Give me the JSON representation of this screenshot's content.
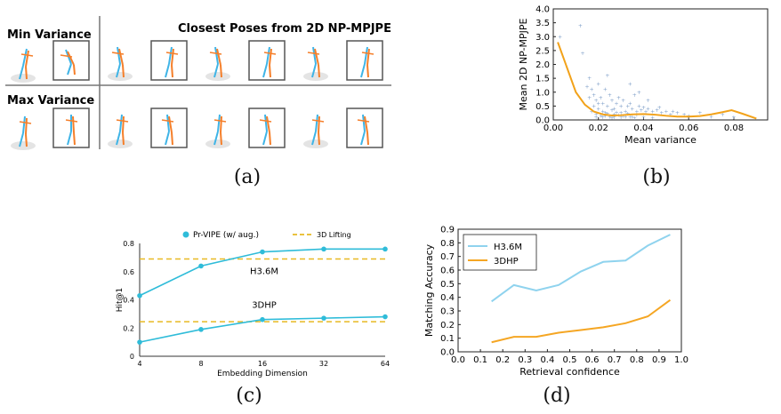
{
  "captions": {
    "a": "(a)",
    "b": "(b)",
    "c": "(c)",
    "d": "(d)"
  },
  "panel_a": {
    "min_label": "Min Variance",
    "max_label": "Max Variance",
    "header": "Closest Poses from 2D NP-MPJPE",
    "colors": {
      "blue": "#3fb4e6",
      "orange": "#f57f2a",
      "frame": "#555555"
    }
  },
  "chart_data": [
    {
      "id": "b",
      "type": "scatter",
      "xlabel": "Mean variance",
      "ylabel": "Mean 2D NP-MPJPE",
      "xlim": [
        0,
        0.095
      ],
      "ylim": [
        0,
        4.0
      ],
      "xticks": [
        "0.00",
        "0.02",
        "0.04",
        "0.06",
        "0.08"
      ],
      "yticks": [
        "0.0",
        "0.5",
        "1.0",
        "1.5",
        "2.0",
        "2.5",
        "3.0",
        "3.5",
        "4.0"
      ],
      "grid": false,
      "scatter_color": "#7f9fc9",
      "curve_color": "#f2a21a",
      "curve": {
        "x": [
          0.002,
          0.006,
          0.01,
          0.014,
          0.018,
          0.022,
          0.026,
          0.03,
          0.035,
          0.04,
          0.045,
          0.05,
          0.055,
          0.06,
          0.065,
          0.07,
          0.075,
          0.079,
          0.084,
          0.09
        ],
        "y": [
          2.8,
          1.9,
          1.0,
          0.55,
          0.3,
          0.2,
          0.16,
          0.17,
          0.2,
          0.21,
          0.19,
          0.15,
          0.12,
          0.12,
          0.14,
          0.2,
          0.28,
          0.35,
          0.22,
          0.05
        ]
      },
      "scatter_sample": {
        "x": [
          0.003,
          0.012,
          0.013,
          0.015,
          0.016,
          0.017,
          0.018,
          0.019,
          0.02,
          0.021,
          0.022,
          0.023,
          0.024,
          0.025,
          0.026,
          0.027,
          0.028,
          0.029,
          0.03,
          0.031,
          0.032,
          0.033,
          0.034,
          0.035,
          0.036,
          0.037,
          0.038,
          0.039,
          0.04,
          0.041,
          0.042,
          0.044,
          0.046,
          0.048,
          0.05,
          0.052,
          0.055,
          0.058,
          0.06,
          0.065,
          0.07,
          0.075,
          0.08,
          0.017,
          0.019,
          0.021,
          0.023,
          0.025,
          0.027,
          0.029,
          0.031,
          0.033,
          0.035,
          0.037,
          0.02,
          0.022,
          0.024,
          0.026,
          0.028,
          0.03,
          0.018,
          0.02,
          0.016,
          0.024,
          0.034,
          0.038,
          0.042,
          0.047,
          0.053,
          0.022,
          0.026,
          0.03,
          0.034,
          0.019,
          0.023,
          0.027,
          0.032,
          0.036,
          0.04,
          0.044
        ],
        "y": [
          3.0,
          3.4,
          2.4,
          1.2,
          1.5,
          1.1,
          0.9,
          0.7,
          1.3,
          0.8,
          0.6,
          1.1,
          0.5,
          0.9,
          0.7,
          0.4,
          0.6,
          0.8,
          0.5,
          0.7,
          0.3,
          0.5,
          0.6,
          0.4,
          0.9,
          0.3,
          0.5,
          0.35,
          0.45,
          0.3,
          0.4,
          0.3,
          0.35,
          0.25,
          0.3,
          0.2,
          0.25,
          0.2,
          0.15,
          0.25,
          0.12,
          0.2,
          0.1,
          0.3,
          0.2,
          0.15,
          0.25,
          0.12,
          0.2,
          0.18,
          0.15,
          0.22,
          0.12,
          0.18,
          0.4,
          0.3,
          0.22,
          0.35,
          0.28,
          0.25,
          0.5,
          0.6,
          0.8,
          1.6,
          1.3,
          1.0,
          0.7,
          0.45,
          0.3,
          0.1,
          0.08,
          0.1,
          0.12,
          0.1,
          0.14,
          0.09,
          0.11,
          0.07,
          0.1,
          0.08
        ]
      }
    },
    {
      "id": "c",
      "type": "line",
      "x": [
        4,
        8,
        16,
        32,
        64
      ],
      "xticks": [
        "4",
        "8",
        "16",
        "32",
        "64"
      ],
      "yticks": [
        "0",
        "0.2",
        "0.4",
        "0.6",
        "0.8"
      ],
      "ylim": [
        0,
        0.8
      ],
      "xlabel": "Embedding Dimension",
      "ylabel": "Hit@1",
      "legend": {
        "series": "Pr-VIPE (w/ aug.)",
        "baseline": "3D Lifting",
        "placement": "top"
      },
      "series_color": "#2fbcd9",
      "baseline_color": "#e8b923",
      "series": [
        {
          "label": "H3.6M",
          "values": [
            0.43,
            0.64,
            0.74,
            0.76,
            0.76
          ],
          "baseline": 0.69
        },
        {
          "label": "3DHP",
          "values": [
            0.1,
            0.19,
            0.26,
            0.27,
            0.28
          ],
          "baseline": 0.245
        }
      ]
    },
    {
      "id": "d",
      "type": "line",
      "x": [
        0.15,
        0.25,
        0.35,
        0.45,
        0.55,
        0.65,
        0.75,
        0.85,
        0.95
      ],
      "xlim": [
        0.0,
        1.0
      ],
      "ylim": [
        0.0,
        0.9
      ],
      "xticks": [
        "0.0",
        "0.1",
        "0.2",
        "0.3",
        "0.4",
        "0.5",
        "0.6",
        "0.7",
        "0.8",
        "0.9",
        "1.0"
      ],
      "yticks": [
        "0.0",
        "0.1",
        "0.2",
        "0.3",
        "0.4",
        "0.5",
        "0.6",
        "0.7",
        "0.8",
        "0.9"
      ],
      "xlabel": "Retrieval confidence",
      "ylabel": "Matching Accuracy",
      "legend_placement": "top-left",
      "series": [
        {
          "name": "H3.6M",
          "color": "#8fd3ee",
          "values": [
            0.37,
            0.49,
            0.45,
            0.49,
            0.59,
            0.66,
            0.67,
            0.78,
            0.86
          ]
        },
        {
          "name": "3DHP",
          "color": "#f5a623",
          "values": [
            0.07,
            0.11,
            0.11,
            0.14,
            0.16,
            0.18,
            0.21,
            0.26,
            0.38
          ]
        }
      ]
    }
  ]
}
